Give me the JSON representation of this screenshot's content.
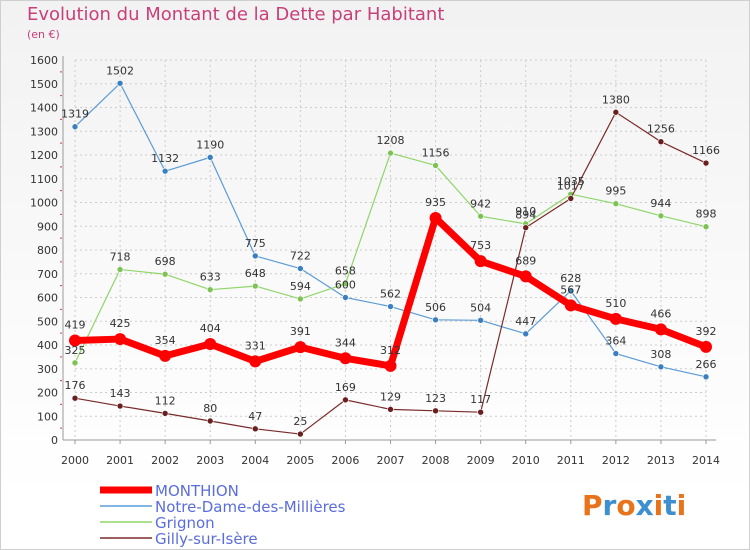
{
  "title": "Evolution du Montant de la Dette par Habitant",
  "subtitle": "(en €)",
  "logo": {
    "text": "Proxiti",
    "colors": [
      "#e8731a",
      "#3d8fd0",
      "#e8731a",
      "#3d8fd0",
      "#e8731a",
      "#3d8fd0",
      "#e8731a"
    ]
  },
  "chart_data": {
    "type": "line",
    "x": [
      2000,
      2001,
      2002,
      2003,
      2004,
      2005,
      2006,
      2007,
      2008,
      2009,
      2010,
      2011,
      2012,
      2013,
      2014
    ],
    "ylim": [
      0,
      1600
    ],
    "yticks": [
      0,
      100,
      200,
      300,
      400,
      500,
      600,
      700,
      800,
      900,
      1000,
      1100,
      1200,
      1300,
      1400,
      1500,
      1600
    ],
    "grid": true,
    "legend_position": "bottom-left",
    "series": [
      {
        "name": "Notre-Dame-des-Millières",
        "color": "#5b9bd5",
        "values": [
          1319,
          1502,
          1132,
          1190,
          775,
          722,
          600,
          562,
          506,
          504,
          447,
          628,
          364,
          308,
          266
        ]
      },
      {
        "name": "Grignon",
        "color": "#8fd66a",
        "values": [
          325,
          718,
          698,
          633,
          648,
          594,
          658,
          1208,
          1156,
          942,
          910,
          1035,
          995,
          944,
          898
        ]
      },
      {
        "name": "Gilly-sur-Isère",
        "color": "#7a2a2a",
        "values": [
          176,
          143,
          112,
          80,
          47,
          25,
          169,
          129,
          123,
          117,
          894,
          1017,
          1380,
          1256,
          1166
        ]
      },
      {
        "name": "MONTHION",
        "color": "#ff0000",
        "values": [
          419,
          425,
          354,
          404,
          331,
          391,
          344,
          312,
          935,
          753,
          689,
          567,
          510,
          466,
          392
        ]
      }
    ],
    "legend": [
      "MONTHION",
      "Notre-Dame-des-Millières",
      "Grignon",
      "Gilly-sur-Isère"
    ]
  }
}
